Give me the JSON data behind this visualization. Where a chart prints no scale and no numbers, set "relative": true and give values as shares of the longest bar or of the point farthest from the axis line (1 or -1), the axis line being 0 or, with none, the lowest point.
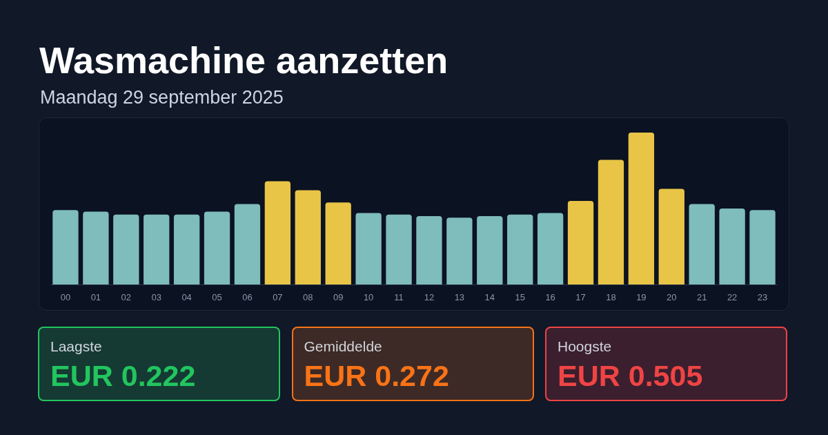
{
  "chart_data": {
    "type": "bar",
    "title": "Wasmachine aanzetten",
    "subtitle": "Maandag 29 september 2025",
    "categories": [
      "00",
      "01",
      "02",
      "03",
      "04",
      "05",
      "06",
      "07",
      "08",
      "09",
      "10",
      "11",
      "12",
      "13",
      "14",
      "15",
      "16",
      "17",
      "18",
      "19",
      "20",
      "21",
      "22",
      "23"
    ],
    "values": [
      0.49,
      0.48,
      0.46,
      0.46,
      0.46,
      0.48,
      0.53,
      0.68,
      0.62,
      0.54,
      0.47,
      0.46,
      0.45,
      0.44,
      0.45,
      0.46,
      0.47,
      0.55,
      0.82,
      1,
      0.63,
      0.53,
      0.5,
      0.49
    ],
    "colors": [
      "#7fbcbc",
      "#7fbcbc",
      "#7fbcbc",
      "#7fbcbc",
      "#7fbcbc",
      "#7fbcbc",
      "#7fbcbc",
      "#e8c547",
      "#e8c547",
      "#e8c547",
      "#7fbcbc",
      "#7fbcbc",
      "#7fbcbc",
      "#7fbcbc",
      "#7fbcbc",
      "#7fbcbc",
      "#7fbcbc",
      "#e8c547",
      "#e8c547",
      "#e8c547",
      "#e8c547",
      "#7fbcbc",
      "#7fbcbc",
      "#7fbcbc"
    ],
    "relative": true,
    "annotations": [
      "Laagste",
      "EUR 0.222",
      "Gemiddelde",
      "EUR 0.272",
      "Hoogste",
      "EUR 0.505"
    ]
  }
}
